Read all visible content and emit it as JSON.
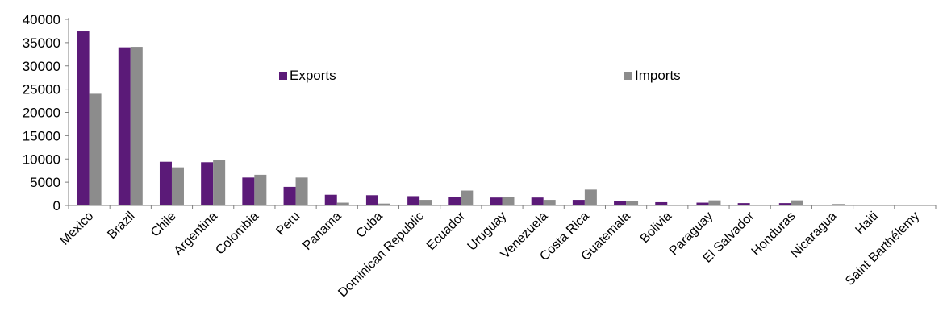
{
  "chart_data": {
    "type": "bar",
    "title": "",
    "xlabel": "",
    "ylabel": "",
    "ylim": [
      0,
      40000
    ],
    "yticks": [
      0,
      5000,
      10000,
      15000,
      20000,
      25000,
      30000,
      35000,
      40000
    ],
    "grid": false,
    "legend_placement": "top-center",
    "categories": [
      "Mexico",
      "Brazil",
      "Chile",
      "Argentina",
      "Colombia",
      "Peru",
      "Panama",
      "Cuba",
      "Dominican Republic",
      "Ecuador",
      "Uruguay",
      "Venezuela",
      "Costa Rica",
      "Guatemala",
      "Bolivia",
      "Paraguay",
      "El Salvador",
      "Honduras",
      "Nicaragua",
      "Haiti",
      "Saint Barthélemy"
    ],
    "series": [
      {
        "name": "Exports",
        "color": "#5b1a78",
        "values": [
          37400,
          34000,
          9400,
          9300,
          6000,
          4000,
          2300,
          2200,
          2000,
          1800,
          1700,
          1700,
          1200,
          900,
          700,
          600,
          500,
          500,
          150,
          150,
          20
        ]
      },
      {
        "name": "Imports",
        "color": "#8c8c8c",
        "values": [
          24000,
          34100,
          8200,
          9700,
          6600,
          6000,
          600,
          400,
          1200,
          3200,
          1800,
          1200,
          3400,
          900,
          50,
          1100,
          150,
          1100,
          300,
          100,
          10
        ]
      }
    ]
  }
}
